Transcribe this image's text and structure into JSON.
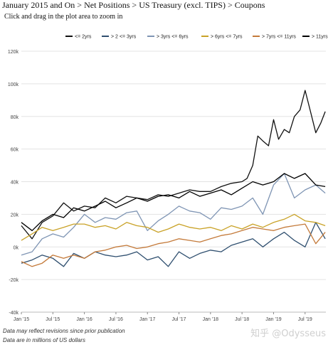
{
  "header": {
    "title": "January 2015 and On > Net Positions > US Treasury (excl. TIPS) > Coupons",
    "subtitle": "Click and drag in the plot area to zoom in"
  },
  "notes": [
    "Data may reflect revisions since prior publication",
    "Data are in millions of US dollars"
  ],
  "watermark": "知乎 @Odysseus",
  "chart_data": {
    "type": "line",
    "x_unit": "year (decimal)",
    "xlim": [
      2015.0,
      2019.83
    ],
    "ylim": [
      -40000,
      120000
    ],
    "yticks": [
      -40000,
      -20000,
      0,
      20000,
      40000,
      60000,
      80000,
      100000,
      120000
    ],
    "ytick_labels": [
      "-40k",
      "-20k",
      "0k",
      "20k",
      "40k",
      "60k",
      "80k",
      "100k",
      "120k"
    ],
    "xticks": [
      2015.0,
      2015.5,
      2016.0,
      2016.5,
      2017.0,
      2017.5,
      2018.0,
      2018.5,
      2019.0,
      2019.5
    ],
    "xtick_labels": [
      "Jan '15",
      "Jul '15",
      "Jan '16",
      "Jul '16",
      "Jan '17",
      "Jul '17",
      "Jan '18",
      "Jul '18",
      "Jan '19",
      "Jul '19"
    ],
    "grid": "horizontal",
    "legend_position": "top",
    "series": [
      {
        "name": "<= 2yrs",
        "color": "#111111",
        "x": [
          2015.0,
          2015.17,
          2015.33,
          2015.5,
          2015.67,
          2015.83,
          2016.0,
          2016.17,
          2016.33,
          2016.5,
          2016.67,
          2016.83,
          2017.0,
          2017.17,
          2017.33,
          2017.5,
          2017.67,
          2017.83,
          2018.0,
          2018.17,
          2018.33,
          2018.5,
          2018.58,
          2018.67,
          2018.75,
          2018.83,
          2018.92,
          2019.0,
          2019.08,
          2019.17,
          2019.25,
          2019.33,
          2019.42,
          2019.5,
          2019.58,
          2019.67,
          2019.75,
          2019.82
        ],
        "y": [
          13000,
          5000,
          15000,
          19000,
          27000,
          22000,
          25000,
          24000,
          30000,
          27000,
          31000,
          30000,
          29000,
          32000,
          31000,
          33000,
          35000,
          34000,
          34000,
          37000,
          39000,
          40000,
          42000,
          50000,
          68000,
          65000,
          62000,
          78000,
          66000,
          72000,
          70000,
          80000,
          84000,
          96000,
          84000,
          70000,
          76000,
          83000
        ]
      },
      {
        "name": "> 2 <= 3yrs",
        "color": "#2f4f6f",
        "x": [
          2015.0,
          2015.17,
          2015.33,
          2015.5,
          2015.67,
          2015.83,
          2016.0,
          2016.17,
          2016.33,
          2016.5,
          2016.67,
          2016.83,
          2017.0,
          2017.17,
          2017.33,
          2017.5,
          2017.67,
          2017.83,
          2018.0,
          2018.17,
          2018.33,
          2018.5,
          2018.67,
          2018.83,
          2019.0,
          2019.17,
          2019.33,
          2019.5,
          2019.67,
          2019.82
        ],
        "y": [
          -10000,
          -8000,
          -5000,
          -7000,
          -12000,
          -4000,
          -7000,
          -3000,
          -5000,
          -6000,
          -5000,
          -3000,
          -8000,
          -6000,
          -12000,
          -3000,
          -7000,
          -4000,
          -2000,
          -3000,
          1000,
          3000,
          5000,
          0,
          5000,
          9000,
          4000,
          0,
          15000,
          5000
        ]
      },
      {
        "name": "> 3yrs <= 6yrs",
        "color": "#7f95b4",
        "x": [
          2015.0,
          2015.17,
          2015.33,
          2015.5,
          2015.67,
          2015.83,
          2016.0,
          2016.17,
          2016.33,
          2016.5,
          2016.67,
          2016.83,
          2017.0,
          2017.17,
          2017.33,
          2017.5,
          2017.67,
          2017.83,
          2018.0,
          2018.17,
          2018.33,
          2018.5,
          2018.67,
          2018.83,
          2019.0,
          2019.17,
          2019.33,
          2019.5,
          2019.67,
          2019.82
        ],
        "y": [
          -5000,
          -3000,
          5000,
          8000,
          6000,
          12000,
          20000,
          15000,
          18000,
          17000,
          21000,
          22000,
          10000,
          16000,
          20000,
          25000,
          22000,
          21000,
          17000,
          24000,
          23000,
          25000,
          30000,
          20000,
          38000,
          45000,
          30000,
          35000,
          38000,
          33000
        ]
      },
      {
        "name": "> 6yrs <= 7yrs",
        "color": "#c9a227",
        "x": [
          2015.0,
          2015.17,
          2015.33,
          2015.5,
          2015.67,
          2015.83,
          2016.0,
          2016.17,
          2016.33,
          2016.5,
          2016.67,
          2016.83,
          2017.0,
          2017.17,
          2017.33,
          2017.5,
          2017.67,
          2017.83,
          2018.0,
          2018.17,
          2018.33,
          2018.5,
          2018.67,
          2018.83,
          2019.0,
          2019.17,
          2019.33,
          2019.5,
          2019.67,
          2019.82
        ],
        "y": [
          4000,
          8000,
          12000,
          10000,
          12000,
          14000,
          14000,
          12000,
          13000,
          11000,
          15000,
          13000,
          12000,
          9000,
          11000,
          14000,
          12000,
          11000,
          12000,
          10000,
          13000,
          11000,
          14000,
          12000,
          15000,
          17000,
          20000,
          16000,
          15000,
          13000
        ]
      },
      {
        "name": "> 7yrs <= 11yrs",
        "color": "#c47a3a",
        "x": [
          2015.0,
          2015.17,
          2015.33,
          2015.5,
          2015.67,
          2015.83,
          2016.0,
          2016.17,
          2016.33,
          2016.5,
          2016.67,
          2016.83,
          2017.0,
          2017.17,
          2017.33,
          2017.5,
          2017.67,
          2017.83,
          2018.0,
          2018.17,
          2018.33,
          2018.5,
          2018.67,
          2018.83,
          2019.0,
          2019.17,
          2019.33,
          2019.5,
          2019.67,
          2019.82
        ],
        "y": [
          -9000,
          -12000,
          -10000,
          -5000,
          -7000,
          -5000,
          -7000,
          -3000,
          -2000,
          0,
          1000,
          -1000,
          0,
          2000,
          3000,
          5000,
          4000,
          3000,
          5000,
          7000,
          8000,
          10000,
          12000,
          11000,
          10000,
          12000,
          13000,
          14000,
          2000,
          9000
        ]
      },
      {
        "name": "> 11yrs",
        "color": "#000000",
        "x": [
          2015.0,
          2015.17,
          2015.33,
          2015.5,
          2015.67,
          2015.83,
          2016.0,
          2016.17,
          2016.33,
          2016.5,
          2016.67,
          2016.83,
          2017.0,
          2017.17,
          2017.33,
          2017.5,
          2017.67,
          2017.83,
          2018.0,
          2018.17,
          2018.33,
          2018.5,
          2018.67,
          2018.83,
          2019.0,
          2019.17,
          2019.33,
          2019.5,
          2019.67,
          2019.82
        ],
        "y": [
          15000,
          10000,
          16000,
          20000,
          18000,
          24000,
          22000,
          25000,
          28000,
          24000,
          27000,
          30000,
          28000,
          31000,
          32000,
          30000,
          34000,
          31000,
          33000,
          35000,
          32000,
          36000,
          40000,
          38000,
          40000,
          45000,
          42000,
          45000,
          38000,
          37000
        ]
      }
    ]
  }
}
